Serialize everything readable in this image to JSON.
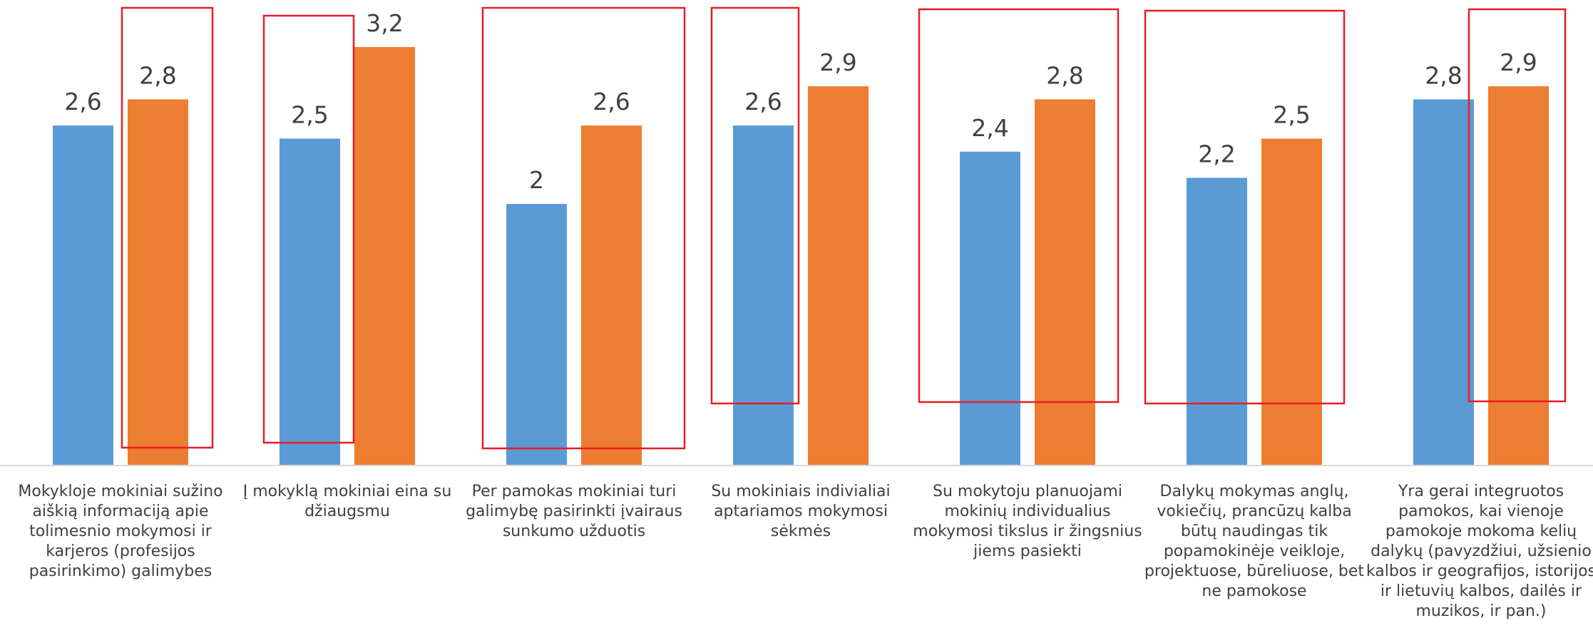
{
  "chart_data": {
    "type": "bar",
    "categories": [
      [
        "Mokykloje mokiniai sužino",
        "aiškią informaciją apie",
        "tolimesnio mokymosi ir",
        "karjeros (profesijos",
        "pasirinkimo) galimybes"
      ],
      [
        "Į mokyklą mokiniai eina su",
        "džiaugsmu"
      ],
      [
        "Per pamokas mokiniai turi",
        "galimybę pasirinkti įvairaus",
        "sunkumo užduotis"
      ],
      [
        "Su mokiniais indivialiai",
        "aptariamos mokymosi",
        "sėkmės"
      ],
      [
        "Su mokytoju planuojami",
        "mokinių individualius",
        "mokymosi tikslus ir žingsnius",
        "jiems pasiekti"
      ],
      [
        "Dalykų mokymas anglų,",
        "vokiečių, prancūzų kalba",
        "būtų naudingas tik",
        "popamokinėje veikloje,",
        "projektuose, būreliuose, bet",
        "ne pamokose"
      ],
      [
        "Yra gerai integruotos",
        "pamokos, kai vienoje",
        "pamokoje mokoma kelių",
        "dalykų (pavyzdžiui, užsienio",
        "kalbos ir geografijos, istorijos",
        "ir lietuvių kalbos, dailės ir",
        "muzikos, ir pan.)"
      ]
    ],
    "series": [
      {
        "values": [
          2.6,
          2.5,
          2,
          2.6,
          2.4,
          2.2,
          2.8
        ],
        "value_labels": [
          "2,6",
          "2,5",
          "2",
          "2,6",
          "2,4",
          "2,2",
          "2,8"
        ],
        "color": "#5B9BD5"
      },
      {
        "values": [
          2.8,
          3.2,
          2.6,
          2.9,
          2.8,
          2.5,
          2.9
        ],
        "value_labels": [
          "2,8",
          "3,2",
          "2,6",
          "2,9",
          "2,8",
          "2,5",
          "2,9"
        ],
        "color": "#ED7D31"
      }
    ],
    "highlight_color": "#E81C24",
    "ylim": [
      0,
      3.2
    ],
    "grid": false,
    "legend": "none"
  }
}
